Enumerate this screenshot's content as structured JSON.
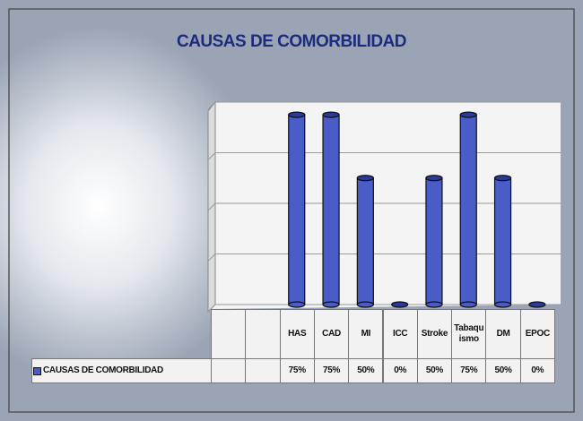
{
  "chart_data": {
    "type": "bar",
    "title": "CAUSAS DE COMORBILIDAD",
    "categories": [
      null,
      null,
      "HAS",
      "CAD",
      "MI",
      "ICC",
      "Stroke",
      "Tabaquismo",
      "DM",
      "EPOC"
    ],
    "series": [
      {
        "name": "CAUSAS DE COMORBILIDAD",
        "color": "#4a5cc8",
        "values": [
          null,
          null,
          75,
          75,
          50,
          0,
          50,
          75,
          50,
          0
        ],
        "value_labels": [
          null,
          null,
          "75%",
          "75%",
          "50%",
          "0%",
          "50%",
          "75%",
          "50%",
          "0%"
        ]
      }
    ],
    "ylim": [
      0,
      80
    ],
    "yticks": [
      0,
      20,
      40,
      60,
      80
    ],
    "grid": true
  }
}
